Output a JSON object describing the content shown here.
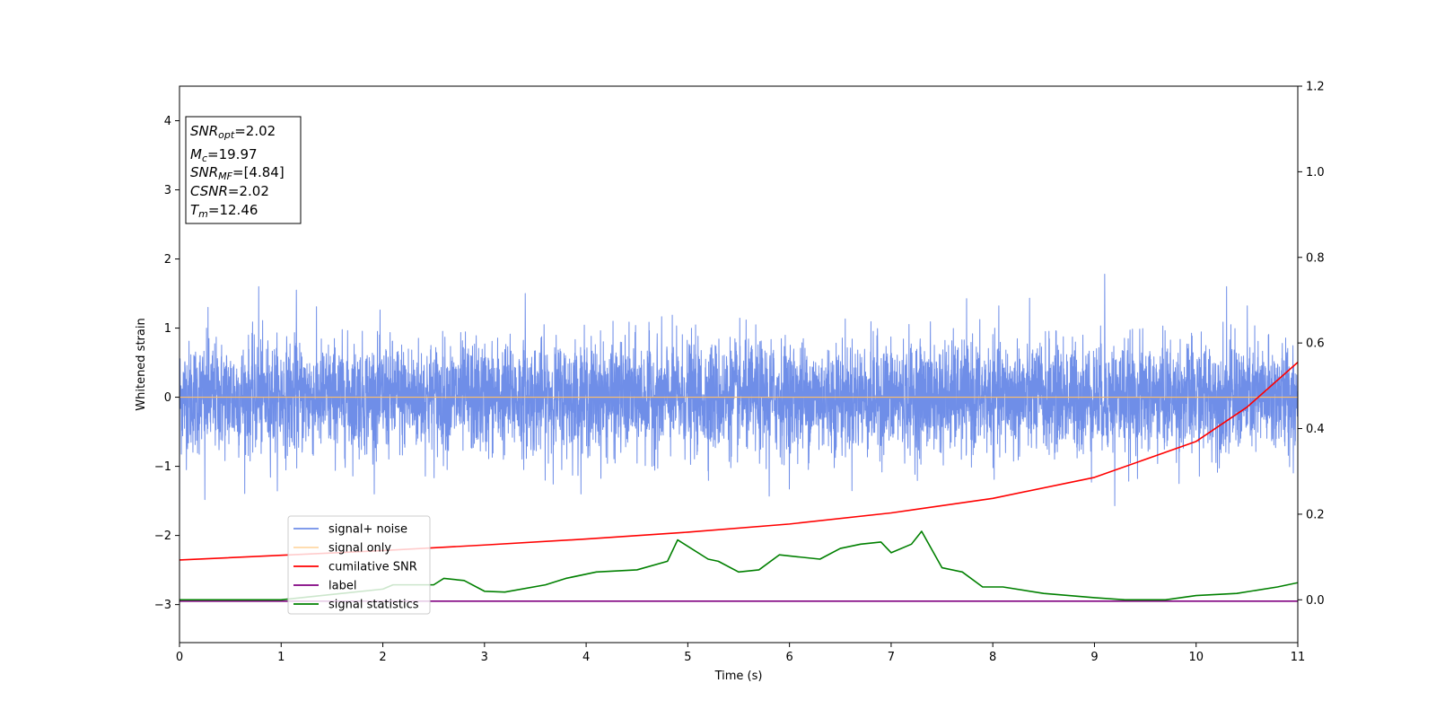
{
  "chart_data": {
    "type": "line",
    "xlabel": "Time (s)",
    "ylabel": "Whitened strain",
    "title": "",
    "xlim": [
      0,
      11
    ],
    "ylim": [
      -3.55,
      4.5
    ],
    "y2lim": [
      -0.1,
      1.2
    ],
    "x_ticks": [
      0,
      1,
      2,
      3,
      4,
      5,
      6,
      7,
      8,
      9,
      10,
      11
    ],
    "y_ticks": [
      -3,
      -2,
      -1,
      0,
      1,
      2,
      3,
      4
    ],
    "y2_ticks": [
      0.0,
      0.2,
      0.4,
      0.6,
      0.8,
      1.0,
      1.2
    ],
    "grid": false,
    "legend_position": "lower-left",
    "annotation": [
      {
        "base": "SNR",
        "sub": "opt",
        "value": "=2.02"
      },
      {
        "base": "M",
        "sub": "c",
        "value": "=19.97"
      },
      {
        "base": "SNR",
        "sub": "MF",
        "value": "=[4.84]"
      },
      {
        "base": "CSNR",
        "sub": "",
        "value": "=2.02"
      },
      {
        "base": "T",
        "sub": "m",
        "value": "=12.46"
      }
    ],
    "series": [
      {
        "name": "signal+ noise",
        "color": "#6f8ee8",
        "axis": "left",
        "kind": "noise",
        "note": "whitened noise, roughly within [-1.5, 1.8]",
        "peaks": [
          {
            "x": 0.28,
            "y": 1.3
          },
          {
            "x": 0.78,
            "y": 1.6
          },
          {
            "x": 1.15,
            "y": 1.55
          },
          {
            "x": 3.4,
            "y": 1.5
          },
          {
            "x": 9.1,
            "y": 1.78
          },
          {
            "x": 10.3,
            "y": 1.6
          },
          {
            "x": 0.25,
            "y": -1.48
          },
          {
            "x": 5.8,
            "y": -1.43
          },
          {
            "x": 9.2,
            "y": -1.57
          }
        ]
      },
      {
        "name": "signal only",
        "color": "#ffbf69",
        "axis": "left",
        "x": [
          0,
          11
        ],
        "y": [
          0,
          0
        ]
      },
      {
        "name": "cumilative SNR",
        "color": "#ff0000",
        "axis": "right",
        "x": [
          0,
          1,
          2,
          3,
          4,
          5,
          6,
          7,
          8,
          9,
          10,
          10.5,
          11
        ],
        "y": [
          0.093,
          0.104,
          0.115,
          0.128,
          0.142,
          0.158,
          0.177,
          0.203,
          0.237,
          0.286,
          0.37,
          0.45,
          0.555
        ]
      },
      {
        "name": "label",
        "color": "#800080",
        "axis": "left",
        "x": [
          0,
          11
        ],
        "y": [
          -2.95,
          -2.95
        ]
      },
      {
        "name": "signal statistics",
        "color": "#008000",
        "axis": "right",
        "x": [
          0,
          1,
          2,
          2.1,
          2.5,
          2.6,
          2.8,
          3.0,
          3.2,
          3.6,
          3.8,
          4.1,
          4.5,
          4.8,
          4.9,
          5.0,
          5.2,
          5.3,
          5.5,
          5.7,
          5.9,
          6.1,
          6.3,
          6.5,
          6.7,
          6.9,
          7.0,
          7.2,
          7.3,
          7.5,
          7.7,
          7.9,
          8.1,
          8.5,
          9.0,
          9.3,
          9.7,
          10.0,
          10.4,
          10.8,
          11.0
        ],
        "y": [
          0.0,
          0.0,
          0.025,
          0.035,
          0.035,
          0.05,
          0.045,
          0.02,
          0.018,
          0.035,
          0.05,
          0.065,
          0.07,
          0.09,
          0.14,
          0.125,
          0.095,
          0.09,
          0.065,
          0.07,
          0.105,
          0.1,
          0.095,
          0.12,
          0.13,
          0.135,
          0.11,
          0.13,
          0.16,
          0.075,
          0.065,
          0.03,
          0.03,
          0.015,
          0.005,
          0.0,
          0.0,
          0.01,
          0.015,
          0.03,
          0.04
        ]
      }
    ]
  }
}
